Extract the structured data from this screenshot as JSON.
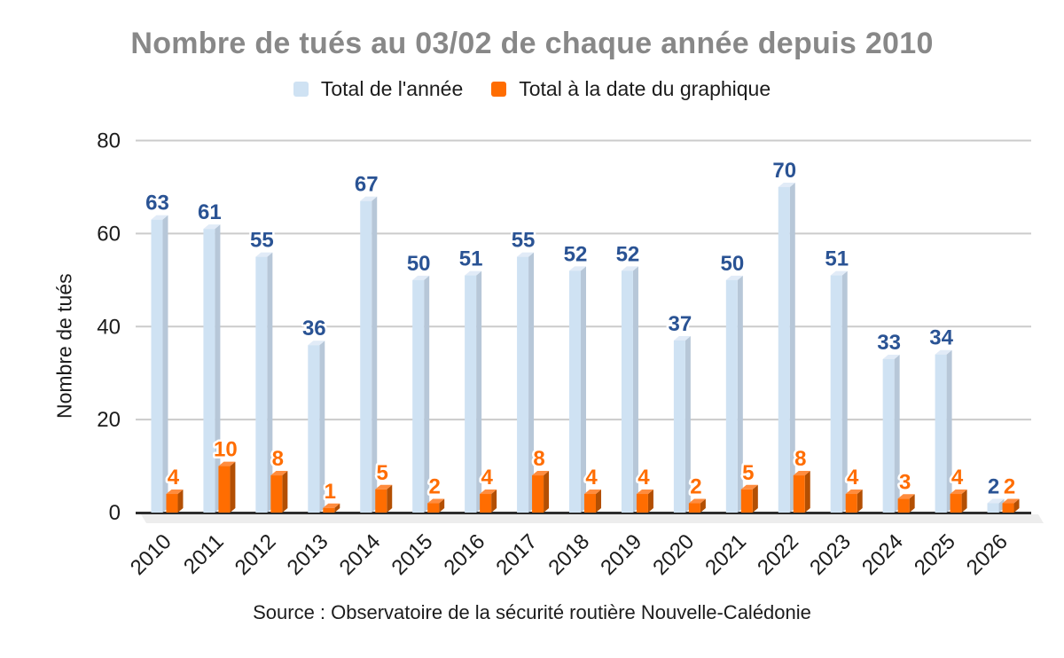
{
  "chart_data": {
    "type": "bar",
    "title": "Nombre de tués au 03/02 de chaque année depuis 2010",
    "ylabel": "Nombre de tués",
    "source": "Source : Observatoire de la sécurité routière Nouvelle-Calédonie",
    "categories": [
      "2010",
      "2011",
      "2012",
      "2013",
      "2014",
      "2015",
      "2016",
      "2017",
      "2018",
      "2019",
      "2020",
      "2021",
      "2022",
      "2023",
      "2024",
      "2025",
      "2026"
    ],
    "series": [
      {
        "name": "Total de l'année",
        "key": "total-annee",
        "color": "#cfe2f3",
        "side_color": "#b7c7d8",
        "top_color": "#e1ebf7",
        "label_color": "#2a5394",
        "values": [
          63,
          61,
          55,
          36,
          67,
          50,
          51,
          55,
          52,
          52,
          37,
          50,
          70,
          51,
          33,
          34,
          2
        ]
      },
      {
        "name": "Total à la date du graphique",
        "key": "total-date",
        "color": "#ff6d01",
        "side_color": "#b34f03",
        "top_color": "#ff8c3e",
        "label_color": "#ff6d01",
        "values": [
          4,
          10,
          8,
          1,
          5,
          2,
          4,
          8,
          4,
          4,
          2,
          5,
          8,
          4,
          3,
          4,
          2
        ]
      }
    ],
    "ylim": [
      0,
      80
    ],
    "yticks": [
      0,
      20,
      40,
      60,
      80
    ],
    "grid": true,
    "legend_position": "top",
    "colors": {
      "title": "#888888",
      "axis_text": "#1c1c1c",
      "gridline": "#cbcbcb",
      "baseline": "#2d2d2d",
      "floor": "#ededed",
      "background": "#ffffff"
    }
  }
}
